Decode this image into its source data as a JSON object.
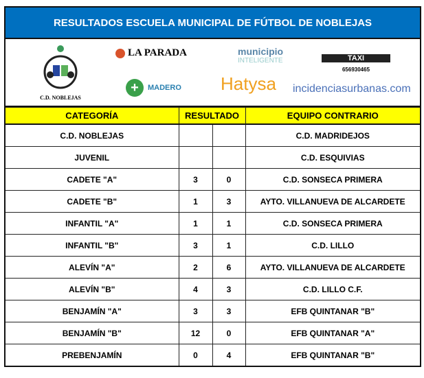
{
  "title": "RESULTADOS ESCUELA MUNICIPAL DE FÚTBOL DE NOBLEJAS",
  "logos": {
    "club": "C.D. NOBLEJAS",
    "laparada": "LA PARADA",
    "municipio": "municipio",
    "inteligente": "INTELIGENTE",
    "madero": "MADERO",
    "hatysa": "Hatysa",
    "taxi": "TAXI",
    "taxi_phone": "656930465",
    "incidencias": "incidenciasurbanas.com"
  },
  "headers": {
    "category": "CATEGORÍA",
    "result": "RESULTADO",
    "opponent": "EQUIPO CONTRARIO"
  },
  "rows": [
    {
      "category": "C.D. NOBLEJAS",
      "home": "",
      "away": "",
      "opponent": "C.D. MADRIDEJOS"
    },
    {
      "category": "JUVENIL",
      "home": "",
      "away": "",
      "opponent": "C.D. ESQUIVIAS"
    },
    {
      "category": "CADETE \"A\"",
      "home": "3",
      "away": "0",
      "opponent": "C.D. SONSECA PRIMERA"
    },
    {
      "category": "CADETE \"B\"",
      "home": "1",
      "away": "3",
      "opponent": "AYTO. VILLANUEVA DE ALCARDETE"
    },
    {
      "category": "INFANTIL \"A\"",
      "home": "1",
      "away": "1",
      "opponent": "C.D. SONSECA PRIMERA"
    },
    {
      "category": "INFANTIL \"B\"",
      "home": "3",
      "away": "1",
      "opponent": "C.D. LILLO"
    },
    {
      "category": "ALEVÍN \"A\"",
      "home": "2",
      "away": "6",
      "opponent": "AYTO. VILLANUEVA DE ALCARDETE"
    },
    {
      "category": "ALEVÍN \"B\"",
      "home": "4",
      "away": "3",
      "opponent": "C.D. LILLO C.F."
    },
    {
      "category": "BENJAMÍN \"A\"",
      "home": "3",
      "away": "3",
      "opponent": "EFB QUINTANAR \"B\""
    },
    {
      "category": "BENJAMÍN \"B\"",
      "home": "12",
      "away": "0",
      "opponent": "EFB QUINTANAR \"A\""
    },
    {
      "category": "PREBENJAMÍN",
      "home": "0",
      "away": "4",
      "opponent": "EFB QUINTANAR \"B\""
    }
  ]
}
